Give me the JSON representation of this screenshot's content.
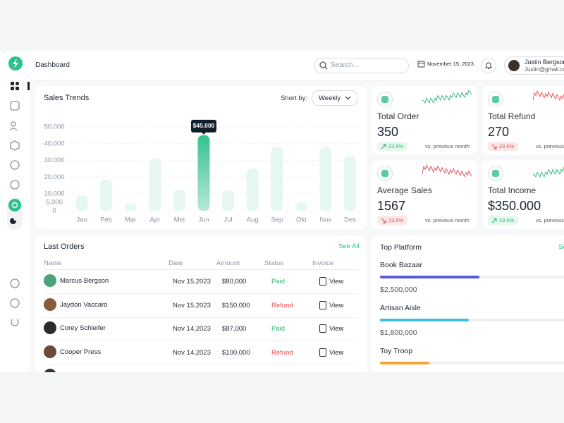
{
  "header": {
    "title": "Dashboard",
    "search_placeholder": "Search...",
    "date": "November 15, 2023",
    "user": {
      "name": "Justin Bergson",
      "email": "Justin@gmail.com"
    }
  },
  "chart_data": {
    "type": "bar",
    "title": "Sales Trends",
    "sort_label": "Short by:",
    "sort_value": "Weekly",
    "categories": [
      "Jan",
      "Feb",
      "Mar",
      "Apr",
      "Mei",
      "Jun",
      "Jul",
      "Aug",
      "Sep",
      "Okt",
      "Nov",
      "Des"
    ],
    "values": [
      9000,
      18500,
      4000,
      31000,
      12500,
      45000,
      12000,
      25000,
      38000,
      5000,
      38000,
      32500
    ],
    "value_labels": [
      null,
      null,
      null,
      null,
      null,
      "$45.000",
      null,
      null,
      null,
      null,
      null,
      null
    ],
    "color": "#e6f6f0",
    "highlight_color": "#34c28f",
    "ylim": [
      0,
      50000
    ],
    "yticks": [
      0,
      {
        "value": 5000,
        "label": "5.000"
      },
      {
        "value": 10000,
        "label": "10.000"
      },
      {
        "value": 20000,
        "label": "20.000"
      },
      {
        "value": 30000,
        "label": "30.000"
      },
      {
        "value": 40000,
        "label": "40.000"
      },
      {
        "value": 50000,
        "label": "50.000"
      }
    ],
    "grid": true
  },
  "stats": [
    {
      "title": "Total Order",
      "value": "350",
      "change": "23.5%",
      "trend": "up",
      "comparison": "vs. previous month"
    },
    {
      "title": "Total Refund",
      "value": "270",
      "change": "23.5%",
      "trend": "down",
      "comparison": "vs. previous month"
    },
    {
      "title": "Average Sales",
      "value": "1567",
      "change": "23.5%",
      "trend": "down",
      "comparison": "vs. previous month"
    },
    {
      "title": "Total Income",
      "value": "$350.000",
      "change": "23.5%",
      "trend": "up",
      "comparison": "vs. previous month"
    }
  ],
  "orders": {
    "title": "Last Orders",
    "link": "See All",
    "columns": [
      "Name",
      "Date",
      "Amount",
      "Status",
      "Invoice"
    ],
    "rows": [
      {
        "name": "Marcus Bergson",
        "date": "Nov 15,2023",
        "amount": "$80,000",
        "status": "Paid",
        "status_color": "#2bb673",
        "action": "View"
      },
      {
        "name": "Jaydon Vaccaro",
        "date": "Nov 15,2023",
        "amount": "$150,000",
        "status": "Refund",
        "status_color": "#e5484d",
        "action": "View"
      },
      {
        "name": "Corey Schleifer",
        "date": "Nov 14,2023",
        "amount": "$87,000",
        "status": "Paid",
        "status_color": "#2bb673",
        "action": "View"
      },
      {
        "name": "Cooper Press",
        "date": "Nov 14,2023",
        "amount": "$100,000",
        "status": "Refund",
        "status_color": "#e5484d",
        "action": "View"
      }
    ]
  },
  "platforms": {
    "title": "Top Platform",
    "link": "See All",
    "items": [
      {
        "name": "Book Bazaar",
        "amount": "$2,500,000",
        "progress": 50,
        "color": "#5b5bd6"
      },
      {
        "name": "Artisan Aisle",
        "amount": "$1,800,000",
        "progress": 45,
        "color": "#3cc2e0"
      },
      {
        "name": "Toy Troop",
        "amount": "",
        "progress": 25,
        "color": "#f7a531"
      }
    ]
  }
}
